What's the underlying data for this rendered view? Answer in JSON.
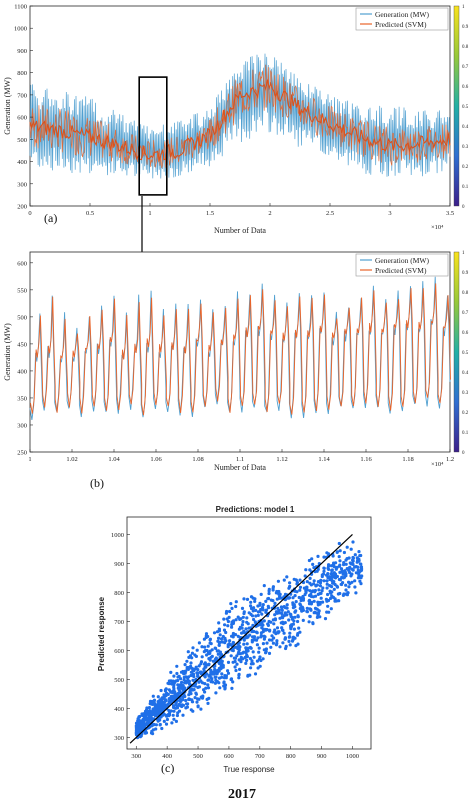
{
  "colors": {
    "generation": "#4f9fd0",
    "predicted": "#e8642a",
    "scatter": "#1f6fe8",
    "axis": "#262626",
    "fit_line": "#000000",
    "colorbar_top": "#f9e21e",
    "colorbar_bottom": "#3b1f8a"
  },
  "panel_a": {
    "label": "(a)",
    "ylabel": "Generation (MW)",
    "xlabel": "Number of Data",
    "x_exponent": "×10⁴",
    "xlim": [
      0,
      3.5
    ],
    "ylim": [
      200,
      1100
    ],
    "x_ticks": [
      "0",
      "0.5",
      "1",
      "1.5",
      "2",
      "2.5",
      "3",
      "3.5"
    ],
    "x_tick_values": [
      0,
      0.5,
      1,
      1.5,
      2,
      2.5,
      3,
      3.5
    ],
    "y_ticks": [
      "200",
      "300",
      "400",
      "500",
      "600",
      "700",
      "800",
      "900",
      "1000",
      "1100"
    ],
    "y_tick_values": [
      200,
      300,
      400,
      500,
      600,
      700,
      800,
      900,
      1000,
      1100
    ],
    "legend": [
      "Generation (MW)",
      "Predicted (SVM)"
    ],
    "zoom_box_x": [
      0.91,
      1.14
    ],
    "zoom_box_y": [
      250,
      780
    ],
    "envelope": {
      "x": [
        0,
        0.25,
        0.5,
        0.75,
        1.0,
        1.25,
        1.5,
        1.75,
        2.0,
        2.25,
        2.5,
        2.75,
        3.0,
        3.25,
        3.5
      ],
      "lower": [
        370,
        350,
        340,
        330,
        320,
        330,
        380,
        480,
        520,
        460,
        400,
        350,
        320,
        330,
        350
      ],
      "upper": [
        760,
        720,
        690,
        620,
        560,
        590,
        640,
        870,
        900,
        780,
        700,
        660,
        650,
        640,
        640
      ],
      "mid": [
        560,
        540,
        510,
        470,
        430,
        450,
        520,
        700,
        740,
        640,
        570,
        510,
        470,
        480,
        500
      ]
    }
  },
  "panel_b": {
    "label": "(b)",
    "ylabel": "Generation (MW)",
    "xlabel": "Number of Data",
    "x_exponent": "×10⁴",
    "xlim": [
      1.0,
      1.2
    ],
    "ylim": [
      250,
      620
    ],
    "x_ticks": [
      "1",
      "1.02",
      "1.04",
      "1.06",
      "1.08",
      "1.1",
      "1.12",
      "1.14",
      "1.16",
      "1.18",
      "1.2"
    ],
    "x_tick_values": [
      1.0,
      1.02,
      1.04,
      1.06,
      1.08,
      1.1,
      1.12,
      1.14,
      1.16,
      1.18,
      1.2
    ],
    "y_ticks": [
      "250",
      "300",
      "350",
      "400",
      "450",
      "500",
      "550",
      "600"
    ],
    "y_tick_values": [
      250,
      300,
      350,
      400,
      450,
      500,
      550,
      600
    ],
    "legend": [
      "Generation (MW)",
      "Predicted (SVM)"
    ],
    "cycle": {
      "count": 34,
      "peak_values": [
        510,
        545,
        505,
        480,
        505,
        520,
        545,
        510,
        540,
        545,
        510,
        520,
        520,
        530,
        515,
        525,
        545,
        545,
        560,
        535,
        530,
        545,
        540,
        545,
        510,
        520,
        540,
        555,
        535,
        545,
        560,
        565,
        570,
        545
      ],
      "trough_values": [
        310,
        330,
        320,
        330,
        320,
        325,
        320,
        325,
        330,
        315,
        330,
        325,
        320,
        320,
        330,
        340,
        320,
        325,
        330,
        320,
        330,
        315,
        315,
        325,
        325,
        330,
        330,
        335,
        330,
        325,
        325,
        335,
        340,
        335
      ],
      "shoulder_values": [
        430,
        440,
        425,
        430,
        440,
        445,
        455,
        430,
        440,
        450,
        440,
        445,
        440,
        455,
        440,
        455,
        460,
        470,
        480,
        470,
        465,
        470,
        470,
        480,
        460,
        470,
        475,
        480,
        475,
        480,
        485,
        480,
        490,
        480
      ]
    }
  },
  "colorbar": {
    "ticks": [
      "0",
      "0.1",
      "0.2",
      "0.3",
      "0.4",
      "0.5",
      "0.6",
      "0.7",
      "0.8",
      "0.9",
      "1"
    ]
  },
  "panel_c": {
    "label": "(c)",
    "title": "Predictions: model 1",
    "xlabel": "True response",
    "ylabel": "Predicted response",
    "caption": "2017",
    "xlim": [
      270,
      1060
    ],
    "ylim": [
      260,
      1060
    ],
    "x_ticks": [
      "300",
      "400",
      "500",
      "600",
      "700",
      "800",
      "900",
      "1000"
    ],
    "x_tick_values": [
      300,
      400,
      500,
      600,
      700,
      800,
      900,
      1000
    ],
    "y_ticks": [
      "300",
      "400",
      "500",
      "600",
      "700",
      "800",
      "900",
      "1000"
    ],
    "y_tick_values": [
      300,
      400,
      500,
      600,
      700,
      800,
      900,
      1000
    ],
    "fit_line": [
      [
        280,
        280
      ],
      [
        1000,
        1000
      ]
    ],
    "scatter_band": {
      "x": [
        300,
        400,
        500,
        600,
        700,
        800,
        900,
        950,
        1000,
        1030
      ],
      "lower": [
        290,
        330,
        380,
        450,
        520,
        590,
        680,
        720,
        780,
        790
      ],
      "upper": [
        360,
        520,
        640,
        770,
        840,
        900,
        960,
        985,
        1000,
        960
      ]
    }
  }
}
